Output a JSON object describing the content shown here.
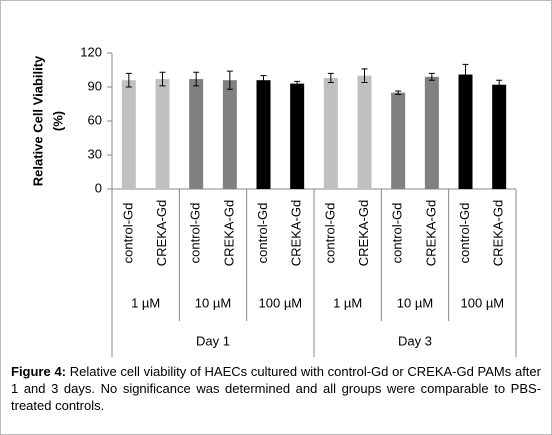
{
  "chart_data": {
    "type": "bar",
    "y_label": [
      "Relative Cell Viability",
      "(%)"
    ],
    "categories": [
      "control-Gd",
      "CREKA-Gd",
      "control-Gd",
      "CREKA-Gd",
      "control-Gd",
      "CREKA-Gd",
      "control-Gd",
      "CREKA-Gd",
      "control-Gd",
      "CREKA-Gd",
      "control-Gd",
      "CREKA-Gd"
    ],
    "concentration_labels": [
      "1 µM",
      "10 µM",
      "100 µM",
      "1 µM",
      "10 µM",
      "100 µM"
    ],
    "day_labels": [
      "Day 1",
      "Day 3"
    ],
    "values": [
      96,
      97,
      97,
      96,
      96,
      93,
      98,
      100,
      85,
      99,
      101,
      92
    ],
    "errors": [
      6,
      6,
      6,
      8,
      4,
      2,
      4,
      6,
      1.5,
      3,
      9,
      4
    ],
    "colors": [
      "#c0c0c0",
      "#c0c0c0",
      "#808080",
      "#808080",
      "#000000",
      "#000000",
      "#c0c0c0",
      "#c0c0c0",
      "#808080",
      "#808080",
      "#000000",
      "#000000"
    ],
    "ylim": [
      0,
      120
    ],
    "yticks": [
      0,
      30,
      60,
      90,
      120
    ],
    "grid": false
  },
  "caption": {
    "label": "Figure 4:",
    "text": "Relative cell viability of HAECs cultured with control-Gd or CREKA-Gd PAMs after 1 and 3 days. No significance was determined and all groups were comparable to PBS-treated controls."
  }
}
